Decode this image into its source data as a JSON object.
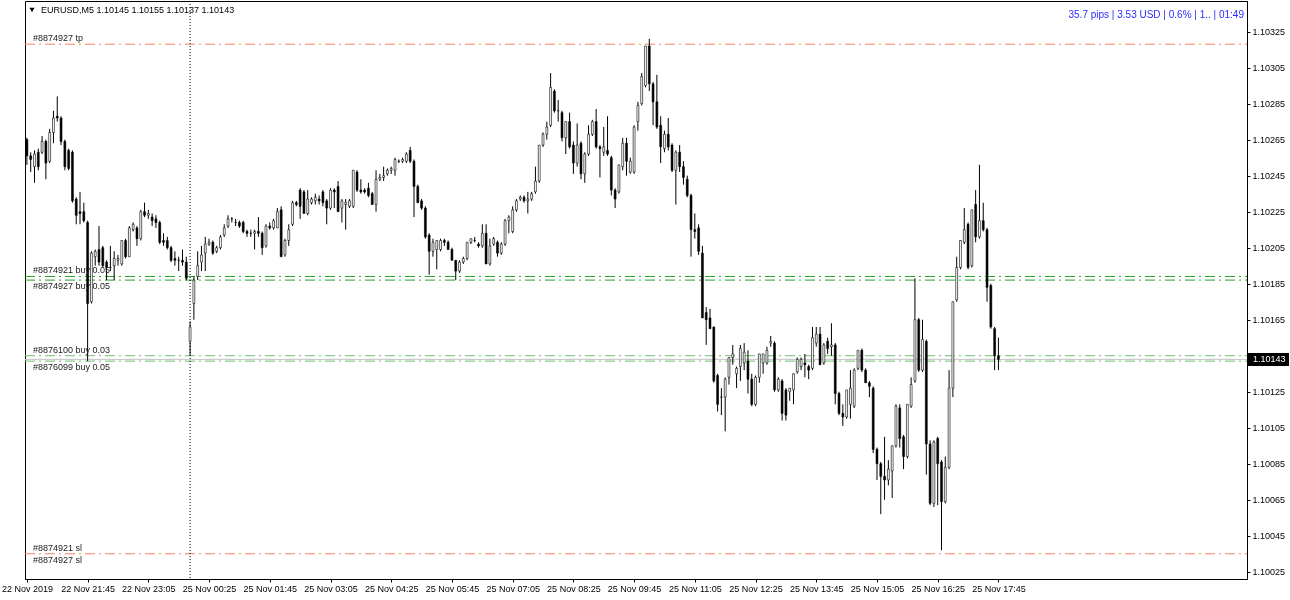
{
  "chart_data": {
    "type": "candlestick",
    "title": "EURUSD,M5 1.10145 1.10155 1.10137 1.10143",
    "annotations": [
      "35.7 pips | 3.53 USD | 0.6% | 1.. | 01:49",
      {
        "text": "#8874927 sl",
        "y": 1.10035
      }
    ],
    "color": "#000000",
    "categories": [
      "22 Nov 2019",
      null,
      null,
      null,
      null,
      null,
      null,
      null,
      null,
      null,
      null,
      null,
      null,
      null,
      null,
      null,
      "22 Nov 21:45",
      null,
      null,
      null,
      null,
      null,
      null,
      null,
      null,
      null,
      null,
      null,
      null,
      null,
      null,
      null,
      "22 Nov 23:05",
      null,
      null,
      null,
      null,
      null,
      null,
      null,
      null,
      null,
      null,
      null,
      null,
      null,
      null,
      null,
      "25 Nov 00:25",
      null,
      null,
      null,
      null,
      null,
      null,
      null,
      null,
      null,
      null,
      null,
      null,
      null,
      null,
      null,
      "25 Nov 01:45",
      null,
      null,
      null,
      null,
      null,
      null,
      null,
      null,
      null,
      null,
      null,
      null,
      null,
      null,
      null,
      "25 Nov 03:05",
      null,
      null,
      null,
      null,
      null,
      null,
      null,
      null,
      null,
      null,
      null,
      null,
      null,
      null,
      null,
      "25 Nov 04:25",
      null,
      null,
      null,
      null,
      null,
      null,
      null,
      null,
      null,
      null,
      null,
      null,
      null,
      null,
      null,
      "25 Nov 05:45",
      null,
      null,
      null,
      null,
      null,
      null,
      null,
      null,
      null,
      null,
      null,
      null,
      null,
      null,
      null,
      "25 Nov 07:05",
      null,
      null,
      null,
      null,
      null,
      null,
      null,
      null,
      null,
      null,
      null,
      null,
      null,
      null,
      null,
      "25 Nov 08:25",
      null,
      null,
      null,
      null,
      null,
      null,
      null,
      null,
      null,
      null,
      null,
      null,
      null,
      null,
      null,
      "25 Nov 09:45",
      null,
      null,
      null,
      null,
      null,
      null,
      null,
      null,
      null,
      null,
      null,
      null,
      null,
      null,
      null,
      "25 Nov 11:05",
      null,
      null,
      null,
      null,
      null,
      null,
      null,
      null,
      null,
      null,
      null,
      null,
      null,
      null,
      null,
      "25 Nov 12:25",
      null,
      null,
      null,
      null,
      null,
      null,
      null,
      null,
      null,
      null,
      null,
      null,
      null,
      null,
      null,
      "25 Nov 13:45",
      null,
      null,
      null,
      null,
      null,
      null,
      null,
      null,
      null,
      null,
      null,
      null,
      null,
      null,
      null,
      "25 Nov 15:05",
      null,
      null,
      null,
      null,
      null,
      null,
      null,
      null,
      null,
      null,
      null,
      null,
      null,
      null,
      null,
      "25 Nov 16:25",
      null,
      null,
      null,
      null,
      null,
      null,
      null,
      null,
      null,
      null,
      null,
      null,
      null,
      null,
      null,
      "25 Nov 17:45",
      null,
      null,
      null,
      null,
      null,
      null,
      null,
      null,
      null,
      null,
      null,
      null,
      null,
      null,
      null,
      null,
      null,
      null,
      null,
      null,
      null,
      null,
      null,
      null,
      null,
      null,
      null,
      null,
      null,
      null,
      null,
      null,
      null,
      null,
      null,
      null,
      null,
      null,
      null,
      null,
      null,
      null,
      null,
      null,
      null,
      null,
      null,
      null,
      null,
      null,
      null,
      null,
      null,
      null,
      null,
      null,
      null,
      null,
      null,
      null,
      null,
      null,
      null,
      null,
      null
    ],
    "ohlc": [
      [
        1.10265,
        1.10266,
        1.10251,
        1.10256
      ],
      [
        1.10256,
        1.10258,
        1.10247,
        1.10254
      ],
      [
        1.1025,
        1.10259,
        1.10241,
        1.10257
      ],
      [
        1.10258,
        1.1026,
        1.10248,
        1.1025
      ],
      [
        1.10258,
        1.10267,
        1.10257,
        1.10264
      ],
      [
        1.10264,
        1.10265,
        1.10243,
        1.10252
      ],
      [
        1.10253,
        1.10271,
        1.10252,
        1.10269
      ],
      [
        1.10269,
        1.10281,
        1.10263,
        1.10277
      ],
      [
        1.10278,
        1.10289,
        1.10275,
        1.10277
      ],
      [
        1.10277,
        1.10278,
        1.10262,
        1.10264
      ],
      [
        1.10264,
        1.10265,
        1.10248,
        1.1025
      ],
      [
        1.10259,
        1.1026,
        1.10248,
        1.10249
      ],
      [
        1.10258,
        1.10259,
        1.1023,
        1.10231
      ],
      [
        1.10232,
        1.10233,
        1.10218,
        1.10223
      ],
      [
        1.10225,
        1.10236,
        1.10218,
        1.10224
      ],
      [
        1.10225,
        1.1023,
        1.10219,
        1.1022
      ],
      [
        1.10219,
        1.1022,
        1.10142,
        1.10174
      ],
      [
        1.10175,
        1.10203,
        1.10174,
        1.10202
      ],
      [
        1.102,
        1.10204,
        1.10195,
        1.10203
      ],
      [
        1.10204,
        1.10217,
        1.10195,
        1.10197
      ],
      [
        1.10205,
        1.10206,
        1.10194,
        1.10195
      ],
      [
        1.10197,
        1.10198,
        1.10187,
        1.10194
      ],
      [
        1.10194,
        1.10206,
        1.10192,
        1.10194
      ],
      [
        1.10195,
        1.10203,
        1.10187,
        1.10199
      ],
      [
        1.10198,
        1.10201,
        1.10195,
        1.10199
      ],
      [
        1.10196,
        1.10209,
        1.10195,
        1.10209
      ],
      [
        1.10209,
        1.1021,
        1.10199,
        1.102
      ],
      [
        1.102,
        1.10217,
        1.102,
        1.10216
      ],
      [
        1.10215,
        1.10219,
        1.10214,
        1.10218
      ],
      [
        1.10216,
        1.10217,
        1.10206,
        1.1021
      ],
      [
        1.1021,
        1.10226,
        1.10209,
        1.10225
      ],
      [
        1.10225,
        1.1023,
        1.10222,
        1.10223
      ],
      [
        1.10223,
        1.10226,
        1.10221,
        1.10224
      ],
      [
        1.10222,
        1.10224,
        1.10217,
        1.1022
      ],
      [
        1.10221,
        1.10223,
        1.10216,
        1.10219
      ],
      [
        1.10219,
        1.1022,
        1.10207,
        1.10208
      ],
      [
        1.10209,
        1.10213,
        1.10206,
        1.10208
      ],
      [
        1.10209,
        1.10211,
        1.10204,
        1.10205
      ],
      [
        1.10205,
        1.10206,
        1.10197,
        1.10198
      ],
      [
        1.10199,
        1.10203,
        1.10195,
        1.10198
      ],
      [
        1.10198,
        1.102,
        1.10192,
        1.10198
      ],
      [
        1.10198,
        1.10204,
        1.10195,
        1.10197
      ],
      [
        1.10197,
        1.102,
        1.10187,
        1.10188
      ],
      [
        1.10153,
        1.10164,
        1.10145,
        1.10161
      ],
      [
        1.10174,
        1.10189,
        1.10165,
        1.10187
      ],
      [
        1.10189,
        1.10203,
        1.10187,
        1.10195
      ],
      [
        1.10197,
        1.10206,
        1.10192,
        1.10201
      ],
      [
        1.10202,
        1.10211,
        1.10192,
        1.10207
      ],
      [
        1.10207,
        1.1021,
        1.10206,
        1.10208
      ],
      [
        1.10208,
        1.10209,
        1.10201,
        1.10202
      ],
      [
        1.10203,
        1.10206,
        1.10202,
        1.10205
      ],
      [
        1.10205,
        1.10212,
        1.10204,
        1.10211
      ],
      [
        1.10212,
        1.10218,
        1.10211,
        1.10216
      ],
      [
        1.10217,
        1.10223,
        1.10216,
        1.10221
      ],
      [
        1.10221,
        1.10222,
        1.10219,
        1.10221
      ],
      [
        1.10219,
        1.10221,
        1.10217,
        1.10219
      ],
      [
        1.10219,
        1.1022,
        1.10216,
        1.10217
      ],
      [
        1.10219,
        1.1022,
        1.10213,
        1.10214
      ],
      [
        1.10214,
        1.10215,
        1.10211,
        1.10213
      ],
      [
        1.10213,
        1.10215,
        1.10211,
        1.10213
      ],
      [
        1.10213,
        1.10215,
        1.10204,
        1.10214
      ],
      [
        1.10214,
        1.10222,
        1.10211,
        1.10213
      ],
      [
        1.10213,
        1.10214,
        1.10201,
        1.10205
      ],
      [
        1.10206,
        1.10218,
        1.10205,
        1.10217
      ],
      [
        1.10217,
        1.10219,
        1.10215,
        1.10216
      ],
      [
        1.10216,
        1.10221,
        1.10215,
        1.1022
      ],
      [
        1.10216,
        1.10227,
        1.10216,
        1.10225
      ],
      [
        1.10226,
        1.10228,
        1.102,
        1.102
      ],
      [
        1.10201,
        1.1021,
        1.102,
        1.10209
      ],
      [
        1.10209,
        1.10218,
        1.10206,
        1.10215
      ],
      [
        1.10218,
        1.10231,
        1.10217,
        1.1023
      ],
      [
        1.1023,
        1.10231,
        1.10228,
        1.10229
      ],
      [
        1.10237,
        1.10238,
        1.10221,
        1.10228
      ],
      [
        1.10236,
        1.10237,
        1.10224,
        1.10224
      ],
      [
        1.10224,
        1.10237,
        1.10223,
        1.10232
      ],
      [
        1.1023,
        1.10233,
        1.10229,
        1.10232
      ],
      [
        1.10231,
        1.10235,
        1.10229,
        1.10233
      ],
      [
        1.10232,
        1.10234,
        1.10229,
        1.10231
      ],
      [
        1.10236,
        1.10237,
        1.10228,
        1.1023
      ],
      [
        1.10231,
        1.10232,
        1.10218,
        1.10227
      ],
      [
        1.10227,
        1.10238,
        1.10226,
        1.10237
      ],
      [
        1.10237,
        1.10238,
        1.10227,
        1.10236
      ],
      [
        1.10239,
        1.10242,
        1.10225,
        1.10225
      ],
      [
        1.10227,
        1.10232,
        1.10219,
        1.10231
      ],
      [
        1.10229,
        1.10232,
        1.10215,
        1.1023
      ],
      [
        1.10228,
        1.10232,
        1.10227,
        1.10231
      ],
      [
        1.10228,
        1.10248,
        1.10227,
        1.10248
      ],
      [
        1.10247,
        1.10248,
        1.10236,
        1.10237
      ],
      [
        1.10237,
        1.10243,
        1.10235,
        1.10236
      ],
      [
        1.10237,
        1.10238,
        1.10235,
        1.10236
      ],
      [
        1.10238,
        1.10241,
        1.10233,
        1.10234
      ],
      [
        1.10235,
        1.10236,
        1.10229,
        1.10229
      ],
      [
        1.10229,
        1.10248,
        1.10225,
        1.10243
      ],
      [
        1.10243,
        1.10246,
        1.10242,
        1.10244
      ],
      [
        1.10244,
        1.1025,
        1.10242,
        1.10245
      ],
      [
        1.10246,
        1.10249,
        1.10245,
        1.10248
      ],
      [
        1.10248,
        1.1025,
        1.10246,
        1.10249
      ],
      [
        1.10248,
        1.10255,
        1.10245,
        1.10254
      ],
      [
        1.10253,
        1.10254,
        1.10252,
        1.10253
      ],
      [
        1.10253,
        1.10255,
        1.10252,
        1.10254
      ],
      [
        1.10253,
        1.10258,
        1.10252,
        1.10257
      ],
      [
        1.10259,
        1.10261,
        1.10252,
        1.10253
      ],
      [
        1.10253,
        1.10254,
        1.10222,
        1.10239
      ],
      [
        1.10239,
        1.1024,
        1.1023,
        1.1023
      ],
      [
        1.10231,
        1.10232,
        1.10226,
        1.10227
      ],
      [
        1.10227,
        1.10228,
        1.1021,
        1.10211
      ],
      [
        1.10212,
        1.10213,
        1.1019,
        1.10203
      ],
      [
        1.10203,
        1.1021,
        1.102,
        1.10208
      ],
      [
        1.10204,
        1.10209,
        1.10193,
        1.10209
      ],
      [
        1.10204,
        1.1021,
        1.10203,
        1.10209
      ],
      [
        1.10209,
        1.1021,
        1.10206,
        1.10208
      ],
      [
        1.10208,
        1.10209,
        1.10204,
        1.10204
      ],
      [
        1.10204,
        1.10205,
        1.10198,
        1.10198
      ],
      [
        1.10198,
        1.10198,
        1.10187,
        1.10192
      ],
      [
        1.10192,
        1.10198,
        1.10191,
        1.10197
      ],
      [
        1.10197,
        1.102,
        1.10196,
        1.10199
      ],
      [
        1.10199,
        1.10208,
        1.10198,
        1.10208
      ],
      [
        1.10208,
        1.1021,
        1.10207,
        1.1021
      ],
      [
        1.10209,
        1.10211,
        1.10208,
        1.10209
      ],
      [
        1.10207,
        1.10208,
        1.10205,
        1.10206
      ],
      [
        1.10206,
        1.10218,
        1.10205,
        1.10213
      ],
      [
        1.10213,
        1.10218,
        1.10196,
        1.10196
      ],
      [
        1.10196,
        1.1021,
        1.10195,
        1.10206
      ],
      [
        1.10207,
        1.10211,
        1.10206,
        1.1021
      ],
      [
        1.10208,
        1.10209,
        1.102,
        1.10202
      ],
      [
        1.10202,
        1.10208,
        1.10201,
        1.10207
      ],
      [
        1.10207,
        1.10221,
        1.10206,
        1.1022
      ],
      [
        1.1022,
        1.10223,
        1.10213,
        1.10222
      ],
      [
        1.10214,
        1.10228,
        1.10213,
        1.10226
      ],
      [
        1.10226,
        1.10232,
        1.10225,
        1.10231
      ],
      [
        1.10232,
        1.10234,
        1.10231,
        1.10233
      ],
      [
        1.10233,
        1.10234,
        1.1023,
        1.10231
      ],
      [
        1.10231,
        1.10236,
        1.10224,
        1.10232
      ],
      [
        1.10232,
        1.10236,
        1.10231,
        1.10235
      ],
      [
        1.10236,
        1.1025,
        1.10235,
        1.10242
      ],
      [
        1.10242,
        1.10262,
        1.10241,
        1.10262
      ],
      [
        1.10262,
        1.10269,
        1.10261,
        1.10268
      ],
      [
        1.10268,
        1.10275,
        1.10265,
        1.10272
      ],
      [
        1.10273,
        1.10302,
        1.10272,
        1.10294
      ],
      [
        1.10292,
        1.10293,
        1.1028,
        1.10281
      ],
      [
        1.10281,
        1.10287,
        1.10275,
        1.10281
      ],
      [
        1.1028,
        1.10281,
        1.10264,
        1.10266
      ],
      [
        1.10266,
        1.10275,
        1.10257,
        1.10275
      ],
      [
        1.10275,
        1.1028,
        1.1026,
        1.10261
      ],
      [
        1.10262,
        1.10264,
        1.10246,
        1.10252
      ],
      [
        1.10252,
        1.10274,
        1.1025,
        1.10262
      ],
      [
        1.10263,
        1.10264,
        1.10243,
        1.10246
      ],
      [
        1.10246,
        1.10258,
        1.10241,
        1.10257
      ],
      [
        1.10257,
        1.10273,
        1.10256,
        1.10268
      ],
      [
        1.10268,
        1.10276,
        1.10267,
        1.10275
      ],
      [
        1.10275,
        1.10282,
        1.1026,
        1.10261
      ],
      [
        1.10261,
        1.10262,
        1.10244,
        1.1026
      ],
      [
        1.10258,
        1.10272,
        1.10256,
        1.10261
      ],
      [
        1.10259,
        1.10278,
        1.10256,
        1.10257
      ],
      [
        1.10255,
        1.10256,
        1.10234,
        1.10237
      ],
      [
        1.10237,
        1.10238,
        1.10227,
        1.10232
      ],
      [
        1.10236,
        1.10251,
        1.10235,
        1.10251
      ],
      [
        1.1025,
        1.10266,
        1.10248,
        1.10263
      ],
      [
        1.10263,
        1.10266,
        1.10245,
        1.10253
      ],
      [
        1.10247,
        1.10255,
        1.10246,
        1.10253
      ],
      [
        1.10247,
        1.10273,
        1.10246,
        1.10272
      ],
      [
        1.10275,
        1.10286,
        1.1027,
        1.10284
      ],
      [
        1.10285,
        1.10302,
        1.10284,
        1.103
      ],
      [
        1.10295,
        1.10317,
        1.10294,
        1.10317
      ],
      [
        1.10317,
        1.10321,
        1.10292,
        1.10296
      ],
      [
        1.10296,
        1.10297,
        1.10273,
        1.10286
      ],
      [
        1.10286,
        1.10301,
        1.10271,
        1.10272
      ],
      [
        1.10273,
        1.10278,
        1.10252,
        1.10261
      ],
      [
        1.1026,
        1.1027,
        1.10258,
        1.10268
      ],
      [
        1.10268,
        1.10277,
        1.10259,
        1.10261
      ],
      [
        1.10262,
        1.10263,
        1.10247,
        1.10248
      ],
      [
        1.10248,
        1.10259,
        1.10229,
        1.10258
      ],
      [
        1.10258,
        1.10262,
        1.10247,
        1.1025
      ],
      [
        1.1025,
        1.10253,
        1.1024,
        1.10244
      ],
      [
        1.10243,
        1.10245,
        1.10233,
        1.10234
      ],
      [
        1.10234,
        1.10235,
        1.102,
        1.10215
      ],
      [
        1.10215,
        1.10224,
        1.1021,
        1.10214
      ],
      [
        1.10216,
        1.10218,
        1.10201,
        1.10203
      ],
      [
        1.10202,
        1.10206,
        1.10166,
        1.10166
      ],
      [
        1.10169,
        1.10172,
        1.10151,
        1.10165
      ],
      [
        1.10166,
        1.10171,
        1.1016,
        1.1016
      ],
      [
        1.10161,
        1.10161,
        1.1013,
        1.10131
      ],
      [
        1.10134,
        1.10135,
        1.10114,
        1.10118
      ],
      [
        1.10122,
        1.10127,
        1.10112,
        1.10122
      ],
      [
        1.10122,
        1.10133,
        1.10103,
        1.10132
      ],
      [
        1.10133,
        1.10144,
        1.10129,
        1.10144
      ],
      [
        1.10144,
        1.10151,
        1.1014,
        1.10146
      ],
      [
        1.10135,
        1.10139,
        1.10127,
        1.10138
      ],
      [
        1.10139,
        1.10151,
        1.10131,
        1.10149
      ],
      [
        1.10141,
        1.10152,
        1.10137,
        1.10147
      ],
      [
        1.10142,
        1.10148,
        1.10124,
        1.10132
      ],
      [
        1.10132,
        1.10135,
        1.10117,
        1.10118
      ],
      [
        1.10118,
        1.10134,
        1.10117,
        1.10133
      ],
      [
        1.10133,
        1.10146,
        1.1013,
        1.10146
      ],
      [
        1.10141,
        1.10146,
        1.10135,
        1.10146
      ],
      [
        1.10141,
        1.1015,
        1.1014,
        1.10148
      ],
      [
        1.10152,
        1.10156,
        1.1015,
        1.10153
      ],
      [
        1.10152,
        1.10153,
        1.10125,
        1.10126
      ],
      [
        1.10126,
        1.10133,
        1.10125,
        1.10132
      ],
      [
        1.10131,
        1.10132,
        1.10109,
        1.10113
      ],
      [
        1.10126,
        1.10127,
        1.10109,
        1.10112
      ],
      [
        1.10125,
        1.10127,
        1.1012,
        1.10127
      ],
      [
        1.10126,
        1.10135,
        1.10118,
        1.10135
      ],
      [
        1.10136,
        1.10144,
        1.10135,
        1.10143
      ],
      [
        1.10139,
        1.10144,
        1.10137,
        1.10143
      ],
      [
        1.10141,
        1.10146,
        1.10133,
        1.1014
      ],
      [
        1.10139,
        1.1014,
        1.10132,
        1.10137
      ],
      [
        1.10138,
        1.10161,
        1.10137,
        1.10155
      ],
      [
        1.10152,
        1.10161,
        1.1015,
        1.10157
      ],
      [
        1.10157,
        1.10161,
        1.1014,
        1.1014
      ],
      [
        1.10141,
        1.10152,
        1.1014,
        1.10151
      ],
      [
        1.10153,
        1.10155,
        1.10146,
        1.10149
      ],
      [
        1.1015,
        1.10163,
        1.10145,
        1.10151
      ],
      [
        1.10151,
        1.10152,
        1.10118,
        1.10124
      ],
      [
        1.10124,
        1.10125,
        1.10112,
        1.10113
      ],
      [
        1.10113,
        1.10118,
        1.10106,
        1.10111
      ],
      [
        1.10111,
        1.10126,
        1.1011,
        1.10126
      ],
      [
        1.10118,
        1.10137,
        1.1011,
        1.10127
      ],
      [
        1.10117,
        1.10138,
        1.10116,
        1.10137
      ],
      [
        1.10138,
        1.10148,
        1.10137,
        1.10148
      ],
      [
        1.10148,
        1.10149,
        1.10136,
        1.10137
      ],
      [
        1.10137,
        1.10138,
        1.1013,
        1.1013
      ],
      [
        1.1013,
        1.10131,
        1.10122,
        1.10128
      ],
      [
        1.10127,
        1.10128,
        1.10091,
        1.10093
      ],
      [
        1.10093,
        1.10094,
        1.10076,
        1.10085
      ],
      [
        1.10085,
        1.10086,
        1.10057,
        1.10078
      ],
      [
        1.10078,
        1.101,
        1.10065,
        1.10076
      ],
      [
        1.10076,
        1.10087,
        1.10073,
        1.10082
      ],
      [
        1.10081,
        1.10095,
        1.10066,
        1.10095
      ],
      [
        1.10095,
        1.10118,
        1.10094,
        1.10117
      ],
      [
        1.10116,
        1.10118,
        1.10094,
        1.10099
      ],
      [
        1.101,
        1.10101,
        1.10082,
        1.10089
      ],
      [
        1.10089,
        1.10118,
        1.10088,
        1.10118
      ],
      [
        1.10117,
        1.10133,
        1.10116,
        1.10129
      ],
      [
        1.10131,
        1.10188,
        1.1013,
        1.10165
      ],
      [
        1.10165,
        1.10166,
        1.10136,
        1.10137
      ],
      [
        1.10137,
        1.10165,
        1.10136,
        1.10154
      ],
      [
        1.10153,
        1.10154,
        1.10079,
        1.10096
      ],
      [
        1.10096,
        1.10098,
        1.10062,
        1.10063
      ],
      [
        1.10063,
        1.10098,
        1.10061,
        1.10097
      ],
      [
        1.10099,
        1.101,
        1.10062,
        1.10085
      ],
      [
        1.10086,
        1.10087,
        1.10037,
        1.10064
      ],
      [
        1.10064,
        1.10089,
        1.10063,
        1.10083
      ],
      [
        1.10083,
        1.10137,
        1.10082,
        1.10127
      ],
      [
        1.10127,
        1.10175,
        1.10122,
        1.10175
      ],
      [
        1.10176,
        1.102,
        1.10175,
        1.10194
      ],
      [
        1.10194,
        1.10209,
        1.10193,
        1.10209
      ],
      [
        1.10208,
        1.10227,
        1.10207,
        1.10215
      ],
      [
        1.10218,
        1.10219,
        1.10193,
        1.10194
      ],
      [
        1.10195,
        1.10226,
        1.10194,
        1.10226
      ],
      [
        1.10229,
        1.10237,
        1.10208,
        1.10211
      ],
      [
        1.10211,
        1.10251,
        1.1021,
        1.1022
      ],
      [
        1.1022,
        1.1023,
        1.10214,
        1.10215
      ],
      [
        1.10215,
        1.10216,
        1.10175,
        1.10183
      ],
      [
        1.10184,
        1.10185,
        1.1016,
        1.10161
      ],
      [
        1.1016,
        1.10161,
        1.10137,
        1.10145
      ],
      [
        1.10145,
        1.10155,
        1.10137,
        1.10143
      ],
      null,
      null,
      null,
      null,
      null,
      null,
      null,
      null,
      null,
      null,
      null,
      null,
      null,
      null,
      null,
      null,
      null,
      null,
      null,
      null,
      null,
      null,
      null,
      null,
      null,
      null,
      null,
      null,
      null,
      null,
      null,
      null,
      null,
      null,
      null,
      null,
      null,
      null,
      null,
      null,
      null,
      null,
      null,
      null,
      null,
      null,
      null,
      null,
      null,
      null,
      null,
      null,
      null,
      null,
      null,
      null,
      null,
      null,
      null,
      null,
      null,
      null,
      null,
      null,
      null
    ],
    "ylim": [
      1.10021,
      1.10342
    ],
    "yticks": [
      1.10025,
      1.10045,
      1.10065,
      1.10085,
      1.10105,
      1.10125,
      1.10165,
      1.10185,
      1.10205,
      1.10225,
      1.10245,
      1.10265,
      1.10285,
      1.10305,
      1.10325
    ],
    "ref_lines": [
      {
        "axis": "y",
        "value": 1.10318,
        "label": "#8874927 tp",
        "color": "#f4845f",
        "line_style": "dashdot"
      },
      {
        "axis": "y",
        "value": 1.10189,
        "label": "#8874921 buy 0.05",
        "color": "#2ca02c",
        "line_style": "dashdot"
      },
      {
        "axis": "y",
        "value": 1.10187,
        "label": "#8874927 buy 0.05",
        "color": "#2ca02c",
        "line_style": "dashdot"
      },
      {
        "axis": "y",
        "value": 1.10145,
        "label": "#8876100 buy 0.03",
        "color": "#6cbf6c",
        "line_style": "dashdot"
      },
      {
        "axis": "y",
        "value": 1.10142,
        "label": "#8876099 buy 0.05",
        "color": "#6cbf6c",
        "line_style": "dashdot"
      },
      {
        "axis": "y",
        "value": 1.10143,
        "label": "1.10143",
        "color": "#c0c0c0",
        "line_style": "solid"
      },
      {
        "axis": "y",
        "value": 1.10035,
        "label": "#8874921 sl",
        "color": "#f4845f",
        "line_style": "dashdot"
      }
    ]
  }
}
